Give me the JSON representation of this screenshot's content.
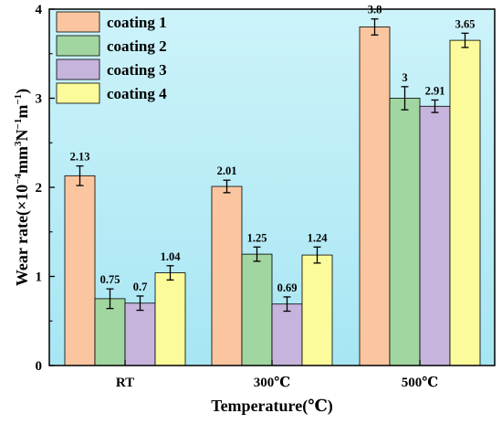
{
  "chart_data": {
    "type": "bar",
    "xlabel": "Temperature(℃)",
    "ylabel_main": "Wear rate(×10",
    "ylabel_exp1": "−4",
    "ylabel_mid1": "mm",
    "ylabel_exp2": "3",
    "ylabel_mid2": "N",
    "ylabel_exp3": "−1",
    "ylabel_mid3": "m",
    "ylabel_exp4": "−1",
    "ylabel_end": ")",
    "ylim": [
      0,
      4
    ],
    "yticks": [
      "0",
      "1",
      "2",
      "3",
      "4"
    ],
    "categories": [
      "RT",
      "300℃",
      "500℃"
    ],
    "legend_position": "top-left",
    "colors": {
      "background": "#b3ecf6",
      "coating1": "#fbc69f",
      "coating2": "#a2d6a0",
      "coating3": "#c6b4dd",
      "coating4": "#fbfb9b"
    },
    "series": [
      {
        "name": "coating 1",
        "values": [
          2.13,
          2.01,
          3.8
        ],
        "errors": [
          0.11,
          0.07,
          0.09
        ],
        "labels": [
          "2.13",
          "2.01",
          "3.8"
        ]
      },
      {
        "name": "coating 2",
        "values": [
          0.75,
          1.25,
          3.0
        ],
        "errors": [
          0.11,
          0.08,
          0.13
        ],
        "labels": [
          "0.75",
          "1.25",
          "3"
        ]
      },
      {
        "name": "coating 3",
        "values": [
          0.7,
          0.69,
          2.91
        ],
        "errors": [
          0.08,
          0.08,
          0.07
        ],
        "labels": [
          "0.7",
          "0.69",
          "2.91"
        ]
      },
      {
        "name": "coating 4",
        "values": [
          1.04,
          1.24,
          3.65
        ],
        "errors": [
          0.08,
          0.09,
          0.08
        ],
        "labels": [
          "1.04",
          "1.24",
          "3.65"
        ]
      }
    ]
  }
}
